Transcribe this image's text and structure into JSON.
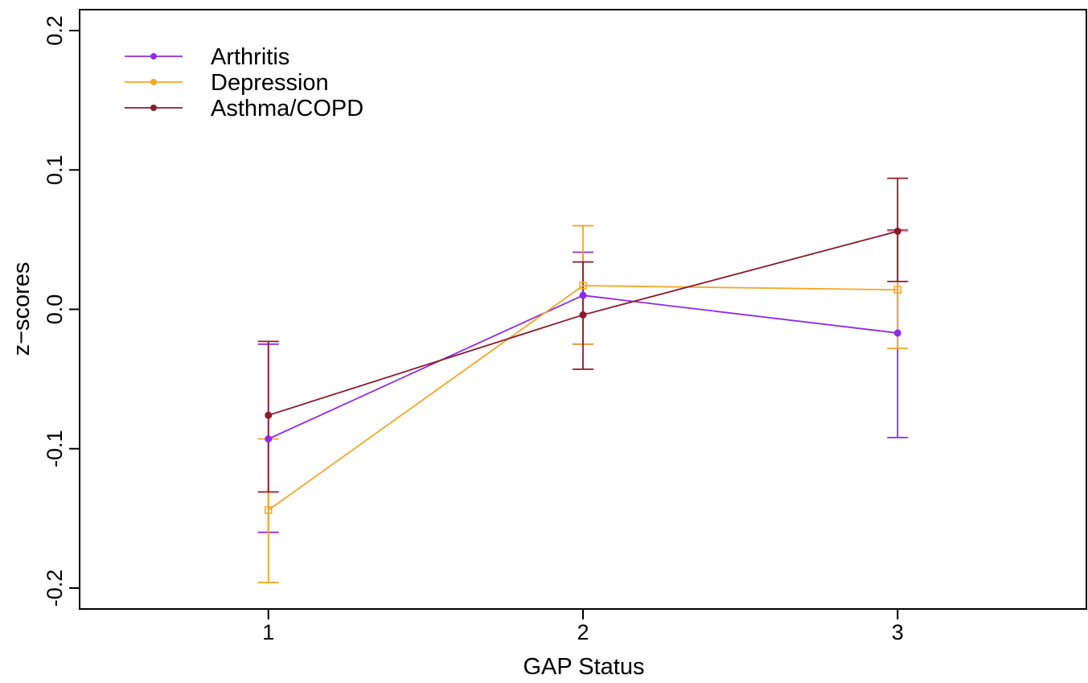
{
  "chart_data": {
    "type": "line",
    "title": "",
    "xlabel": "GAP Status",
    "ylabel": "z−scores",
    "x": [
      1,
      2,
      3
    ],
    "xlim": [
      0.4,
      3.6
    ],
    "ylim": [
      -0.215,
      0.215
    ],
    "x_ticks": [
      "1",
      "2",
      "3"
    ],
    "y_ticks": [
      "-0.2",
      "-0.1",
      "0.0",
      "0.1",
      "0.2"
    ],
    "grid": false,
    "legend_position": "top-left",
    "error_bars": true,
    "series": [
      {
        "name": "Arthritis",
        "color": "#8f2be6",
        "marker": "circle",
        "values": [
          -0.093,
          0.01,
          -0.017
        ],
        "lower": [
          -0.16,
          -0.025,
          -0.092
        ],
        "upper": [
          -0.025,
          0.041,
          0.057
        ]
      },
      {
        "name": "Depression",
        "color": "#f5a623",
        "marker": "square",
        "values": [
          -0.144,
          0.017,
          0.014
        ],
        "lower": [
          -0.196,
          -0.025,
          -0.028
        ],
        "upper": [
          -0.093,
          0.06,
          0.056
        ]
      },
      {
        "name": "Asthma/COPD",
        "color": "#8b1a2b",
        "marker": "circle",
        "values": [
          -0.076,
          -0.004,
          0.056
        ],
        "lower": [
          -0.131,
          -0.043,
          0.02
        ],
        "upper": [
          -0.023,
          0.034,
          0.094
        ]
      }
    ]
  }
}
